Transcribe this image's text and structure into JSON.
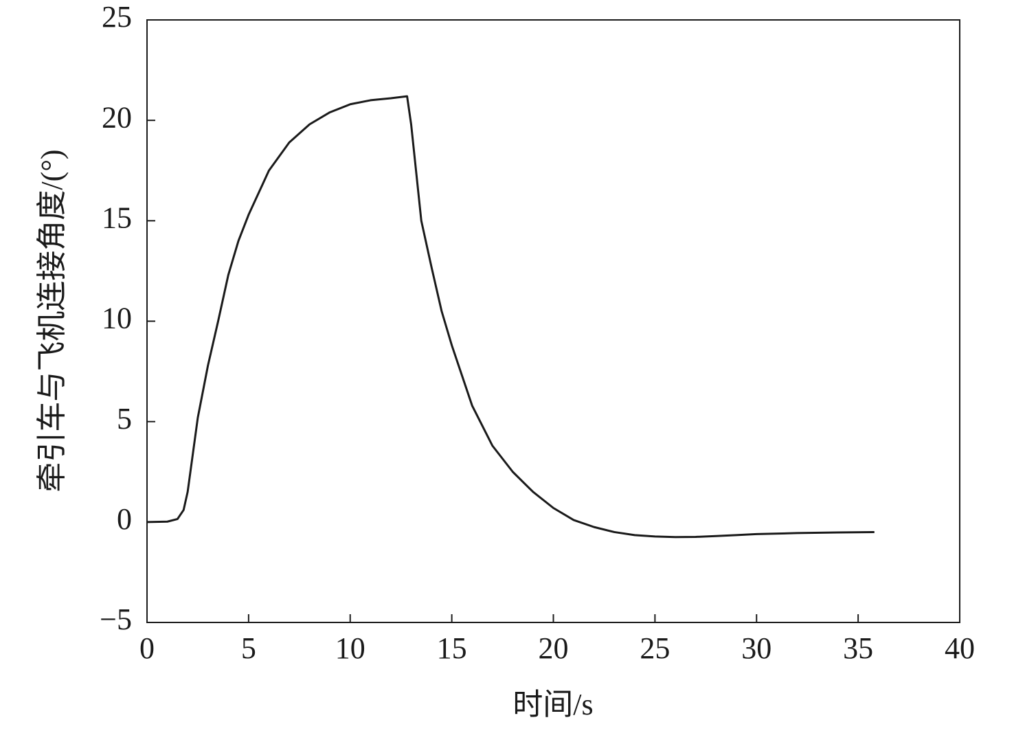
{
  "chart_data": {
    "type": "line",
    "x_label": "时间/s",
    "y_label": "牵引车与飞机连接角度/(°)",
    "x": [
      0,
      1,
      1.5,
      1.8,
      2,
      2.5,
      3,
      3.5,
      4,
      4.5,
      5,
      6,
      7,
      8,
      9,
      10,
      11,
      12,
      12.8,
      13,
      13.5,
      14,
      14.5,
      15,
      16,
      17,
      18,
      19,
      20,
      21,
      22,
      23,
      24,
      25,
      26,
      27,
      28,
      29,
      30,
      32,
      34,
      35.8
    ],
    "series": [
      {
        "color": "#1a1a1a",
        "values": [
          0,
          0.02,
          0.15,
          0.6,
          1.5,
          5.2,
          7.8,
          10,
          12.3,
          14,
          15.3,
          17.5,
          18.9,
          19.8,
          20.4,
          20.8,
          21,
          21.1,
          21.2,
          19.8,
          15,
          12.7,
          10.5,
          8.8,
          5.8,
          3.8,
          2.5,
          1.5,
          0.7,
          0.1,
          -0.25,
          -0.5,
          -0.65,
          -0.72,
          -0.75,
          -0.74,
          -0.7,
          -0.65,
          -0.6,
          -0.55,
          -0.52,
          -0.5
        ]
      }
    ],
    "xlim": [
      0,
      40
    ],
    "xticks": [
      0,
      5,
      10,
      15,
      20,
      25,
      30,
      35,
      40
    ],
    "ylim": [
      -5,
      25
    ],
    "yticks": [
      {
        "value": -5,
        "label": "−5"
      },
      0,
      5,
      10,
      15,
      20,
      25
    ],
    "grid": false
  }
}
